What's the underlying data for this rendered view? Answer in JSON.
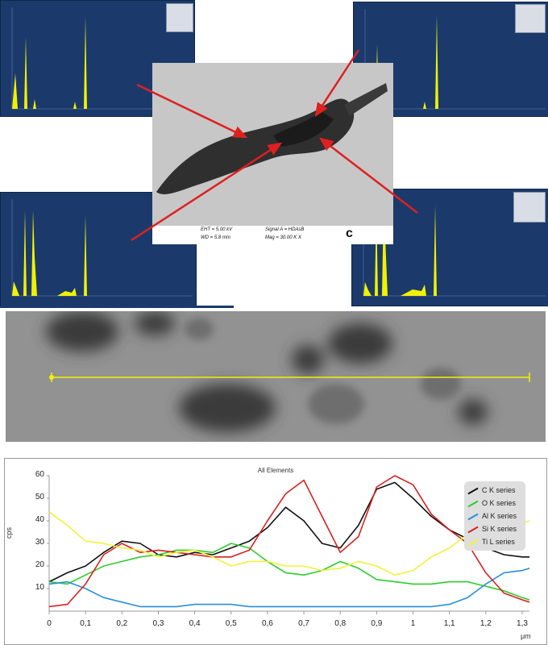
{
  "sem_image": {
    "eht": "EHT = 5.00 kV",
    "wd": "WD = 5.8 mm",
    "signal": "Signal A = HDAsB",
    "mag": "Mag = 30.00 K X"
  },
  "colors": {
    "spectrum_bg": "#1b3a6b",
    "spectrum_trace": "#f2f200",
    "arrow": "#e02020",
    "line_scan": "#f2f200"
  },
  "profile": {
    "title": "All Elements",
    "ylabel": "cps",
    "xunit": "μm",
    "yticks": [
      "60",
      "50",
      "40",
      "30",
      "20",
      "10"
    ],
    "xticks": [
      "0",
      "0,1",
      "0,2",
      "0,3",
      "0,4",
      "0,5",
      "0,6",
      "0,7",
      "0,8",
      "0,9",
      "1",
      "1,1",
      "1,2",
      "1,3"
    ]
  },
  "chart_data": {
    "type": "line",
    "title": "All Elements",
    "xlabel": "μm",
    "ylabel": "cps",
    "xlim": [
      0,
      1.32
    ],
    "ylim": [
      0,
      60
    ],
    "grid": false,
    "legend": "top-right",
    "x": [
      0,
      0.05,
      0.1,
      0.15,
      0.2,
      0.25,
      0.3,
      0.35,
      0.4,
      0.45,
      0.5,
      0.55,
      0.6,
      0.65,
      0.7,
      0.75,
      0.8,
      0.85,
      0.9,
      0.95,
      1.0,
      1.05,
      1.1,
      1.15,
      1.2,
      1.25,
      1.3,
      1.32
    ],
    "series": [
      {
        "name": "C K series",
        "color": "#111111",
        "values": [
          13,
          17,
          20,
          26,
          31,
          30,
          25,
          24,
          26,
          25,
          28,
          31,
          37,
          46,
          40,
          30,
          28,
          38,
          54,
          57,
          50,
          42,
          36,
          32,
          28,
          25,
          24,
          24
        ]
      },
      {
        "name": "O K series",
        "color": "#2ecc2e",
        "values": [
          13,
          12,
          16,
          20,
          22,
          24,
          25,
          27,
          27,
          26,
          30,
          28,
          22,
          17,
          16,
          18,
          22,
          19,
          14,
          13,
          12,
          12,
          13,
          13,
          11,
          9,
          6,
          5
        ]
      },
      {
        "name": "Al K series",
        "color": "#2a8fd8",
        "values": [
          12,
          13,
          10,
          6,
          4,
          2,
          2,
          2,
          3,
          3,
          3,
          2,
          2,
          2,
          2,
          2,
          2,
          2,
          2,
          2,
          2,
          2,
          3,
          6,
          12,
          17,
          18,
          19
        ]
      },
      {
        "name": "Si K series",
        "color": "#d82020",
        "values": [
          2,
          3,
          12,
          25,
          30,
          26,
          27,
          26,
          25,
          24,
          24,
          27,
          40,
          52,
          58,
          42,
          26,
          33,
          55,
          60,
          56,
          43,
          36,
          30,
          17,
          8,
          5,
          4
        ]
      },
      {
        "name": "Ti L series",
        "color": "#f2f23a",
        "values": [
          44,
          38,
          31,
          30,
          28,
          27,
          24,
          26,
          27,
          24,
          20,
          22,
          22,
          20,
          20,
          18,
          19,
          22,
          20,
          16,
          18,
          24,
          28,
          34,
          36,
          38,
          39,
          40
        ]
      }
    ]
  }
}
